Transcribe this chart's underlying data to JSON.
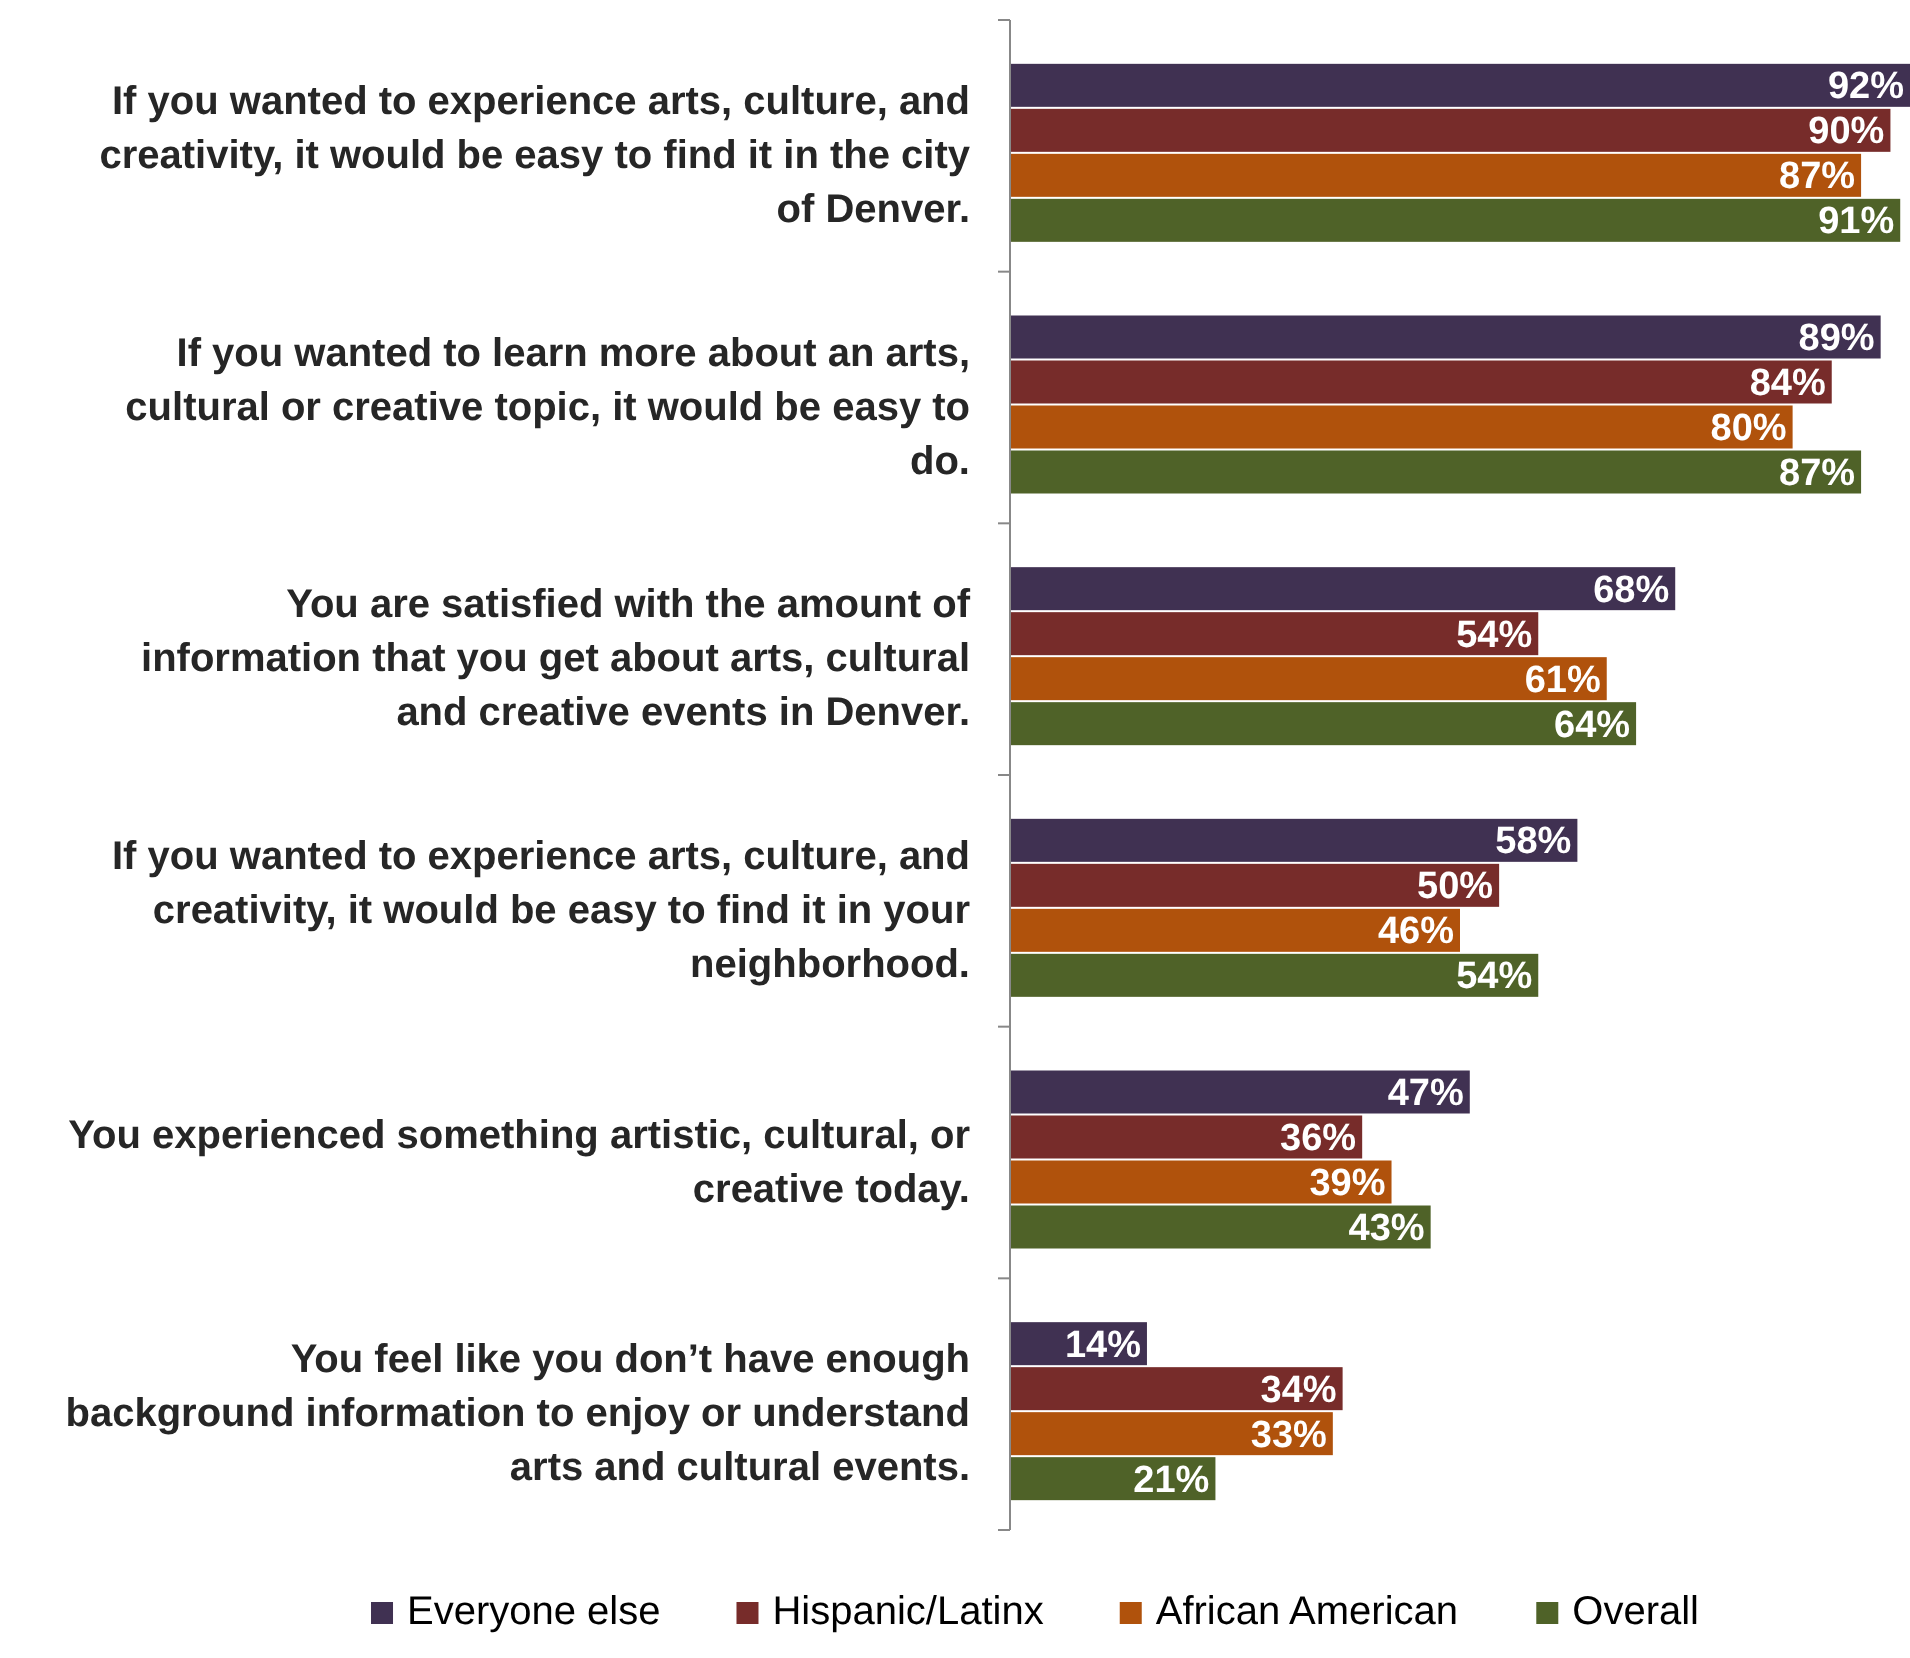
{
  "chart_data": {
    "type": "bar",
    "orientation": "horizontal",
    "categories": [
      "If you wanted to experience arts, culture, and creativity, it would be easy to find it in the city of Denver.",
      "If you wanted to learn more about an arts, cultural or creative topic, it would be easy to do.",
      "You are satisfied with the amount of information that you get about arts, cultural and creative events in Denver.",
      "If you wanted to experience arts, culture, and creativity, it would be easy to find it in your neighborhood.",
      "You experienced something artistic, cultural, or creative today.",
      "You feel like you don’t have enough background information to enjoy or understand arts and cultural events."
    ],
    "series": [
      {
        "name": "Everyone else",
        "color": "#403152",
        "values": [
          92,
          89,
          68,
          58,
          47,
          14
        ],
        "value_labels": [
          "92%",
          "89%",
          "68%",
          "58%",
          "47%",
          "14%"
        ]
      },
      {
        "name": "Hispanic/Latinx",
        "color": "#772c2a",
        "values": [
          90,
          84,
          54,
          50,
          36,
          34
        ],
        "value_labels": [
          "90%",
          "84%",
          "54%",
          "50%",
          "36%",
          "34%"
        ]
      },
      {
        "name": "African American",
        "color": "#b0520c",
        "values": [
          87,
          80,
          61,
          46,
          39,
          33
        ],
        "value_labels": [
          "87%",
          "80%",
          "61%",
          "46%",
          "39%",
          "33%"
        ]
      },
      {
        "name": "Overall",
        "color": "#4f6228",
        "values": [
          91,
          87,
          64,
          54,
          43,
          21
        ],
        "value_labels": [
          "91%",
          "87%",
          "64%",
          "54%",
          "43%",
          "21%"
        ]
      }
    ],
    "legend": "bottom",
    "grid": false
  }
}
